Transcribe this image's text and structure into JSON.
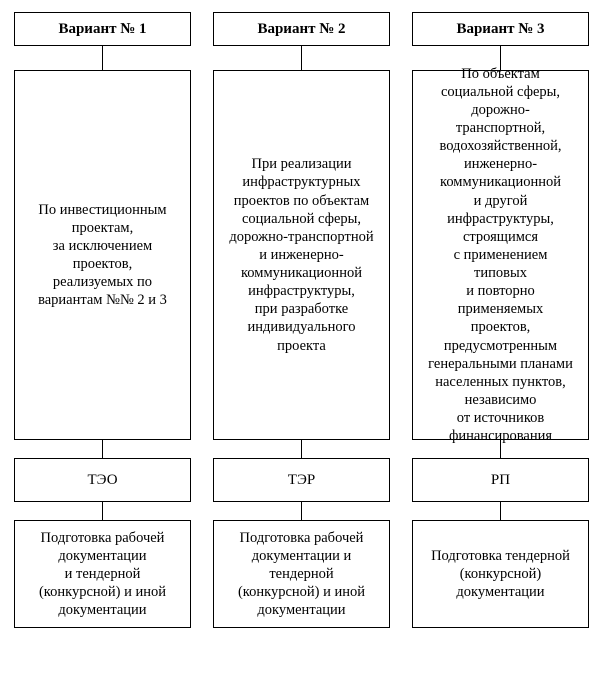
{
  "diagram": {
    "type": "flowchart",
    "background_color": "#ffffff",
    "border_color": "#000000",
    "font_family": "Times New Roman",
    "header_fontsize": 15,
    "body_fontsize": 14.5,
    "columns": [
      {
        "header": "Вариант № 1",
        "description": "По инвестиционным\nпроектам,\nза исключением\nпроектов,\nреализуемых по\nвариантам №№ 2 и 3",
        "code": "ТЭО",
        "output": "Подготовка рабочей\nдокументации\nи тендерной\n(конкурсной) и иной\nдокументации"
      },
      {
        "header": "Вариант № 2",
        "description": "При реализации\nинфраструктурных\nпроектов по объектам\nсоциальной сферы,\nдорожно-транспортной\nи инженерно-\nкоммуникационной\nинфраструктуры,\nпри разработке\nиндивидуального\nпроекта",
        "code": "ТЭР",
        "output": "Подготовка рабочей\nдокументации и\nтендерной\n(конкурсной) и иной\nдокументации"
      },
      {
        "header": "Вариант № 3",
        "description": "По объектам\nсоциальной сферы,\nдорожно-\nтранспортной,\nводохозяйственной,\nинженерно-\nкоммуникационной\nи другой\nинфраструктуры,\nстроящимся\nс применением\nтиповых\nи повторно\nприменяемых\nпроектов,\nпредусмотренным\nгенеральными планами\nнаселенных пунктов,\nнезависимо\nот источников\nфинансирования",
        "code": "РП",
        "output": "Подготовка тендерной\n(конкурсной)\nдокументации"
      }
    ],
    "edges": [
      {
        "from": "header",
        "to": "description"
      },
      {
        "from": "description",
        "to": "code"
      },
      {
        "from": "code",
        "to": "output"
      }
    ]
  }
}
